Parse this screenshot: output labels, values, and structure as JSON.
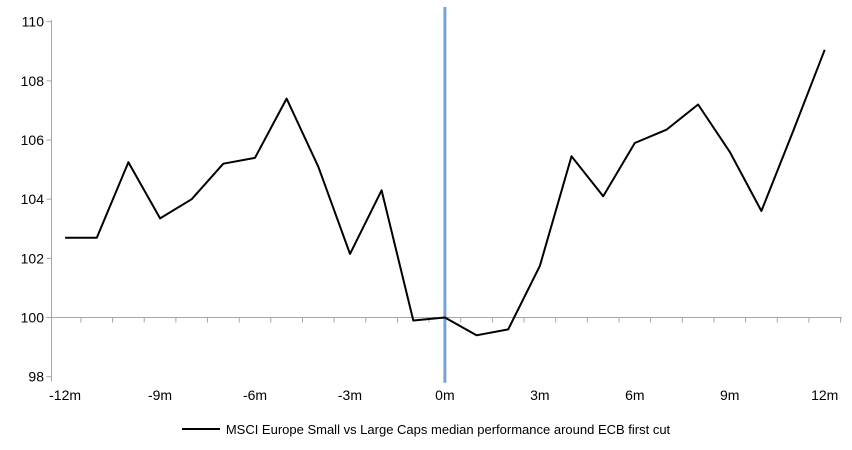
{
  "chart_data": {
    "type": "line",
    "title": "",
    "xlabel": "",
    "ylabel": "",
    "x": [
      -12,
      -11,
      -10,
      -9,
      -8,
      -7,
      -6,
      -5,
      -4,
      -3,
      -2,
      -1,
      0,
      1,
      2,
      3,
      4,
      5,
      6,
      7,
      8,
      9,
      10,
      11,
      12
    ],
    "series": [
      {
        "name": "MSCI Europe Small vs Large Caps median performance around ECB first cut",
        "color": "#000000",
        "values": [
          102.7,
          102.7,
          105.25,
          103.35,
          104.0,
          105.2,
          105.4,
          107.4,
          105.1,
          102.15,
          104.3,
          99.9,
          100.0,
          99.4,
          99.6,
          101.75,
          105.45,
          104.1,
          105.9,
          106.35,
          107.2,
          105.6,
          103.6,
          106.3,
          109.05
        ]
      }
    ],
    "x_tick_values": [
      -12,
      -9,
      -6,
      -3,
      0,
      3,
      6,
      9,
      12
    ],
    "x_tick_labels": [
      "-12m",
      "-9m",
      "-6m",
      "-3m",
      "0m",
      "3m",
      "6m",
      "9m",
      "12m"
    ],
    "y_ticks": [
      98,
      100,
      102,
      104,
      106,
      108,
      110
    ],
    "xlim": [
      -12,
      12
    ],
    "ylim": [
      98,
      110
    ],
    "grid": false,
    "axis_color": "#a6a6a6",
    "x_axis_crosses_at": 100,
    "event_line": {
      "x": 0,
      "color": "#74a3d6"
    },
    "legend_position": "bottom"
  }
}
